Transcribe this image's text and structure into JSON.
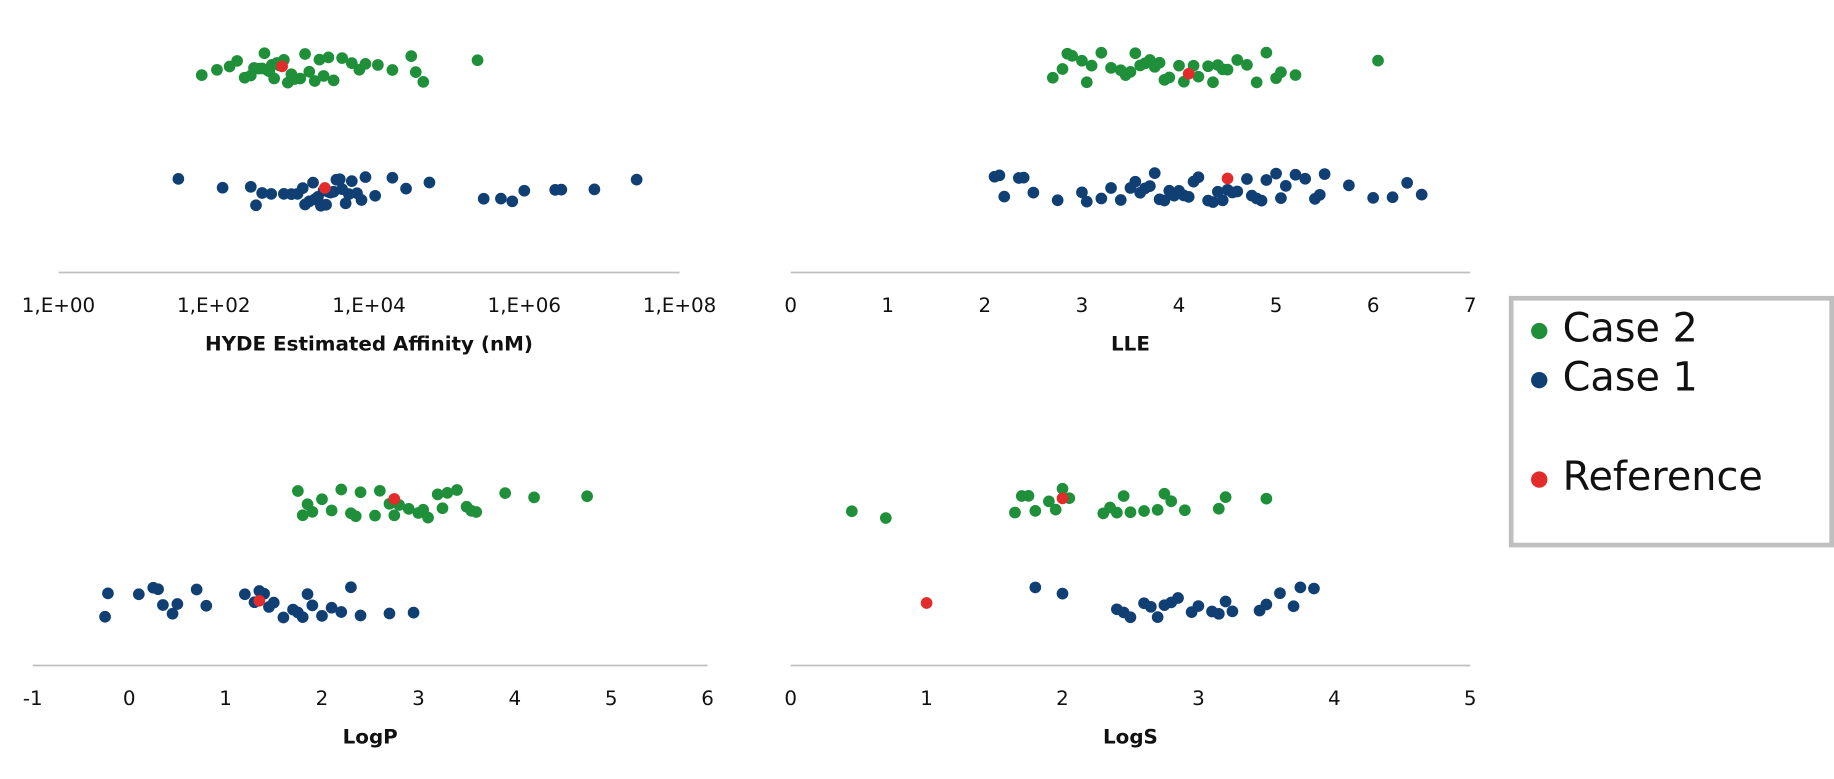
{
  "chart_data": [
    {
      "type": "scatter",
      "xlabel": "HYDE Estimated Affinity (nM)",
      "log": true,
      "xlim": [
        1,
        100000000
      ],
      "xticks": [
        {
          "value": 1,
          "label": "1,E+00"
        },
        {
          "value": 100,
          "label": "1,E+02"
        },
        {
          "value": 10000,
          "label": "1,E+04"
        },
        {
          "value": 1000000,
          "label": "1,E+06"
        },
        {
          "value": 100000000,
          "label": "1,E+08"
        }
      ],
      "series": [
        {
          "name": "Case 2",
          "color": "#1f8f3a",
          "values": [
            70,
            110,
            160,
            200,
            250,
            300,
            330,
            380,
            420,
            450,
            500,
            520,
            560,
            600,
            650,
            700,
            800,
            900,
            1000,
            1100,
            1300,
            1500,
            1700,
            2000,
            2300,
            2600,
            3000,
            3500,
            4500,
            6000,
            7500,
            9000,
            13000,
            20000,
            35000,
            40000,
            50000,
            250000
          ]
        },
        {
          "name": "Case 1",
          "color": "#103f74",
          "values": [
            35,
            130,
            300,
            350,
            420,
            550,
            800,
            1000,
            1200,
            1400,
            1500,
            1700,
            1900,
            2000,
            2200,
            2400,
            2600,
            2800,
            3000,
            3200,
            3500,
            3800,
            4200,
            4500,
            5000,
            5500,
            6000,
            7000,
            8000,
            9000,
            12000,
            20000,
            30000,
            60000,
            300000,
            500000,
            700000,
            1000000,
            2500000,
            3000000,
            8000000,
            28000000
          ]
        },
        {
          "name": "Reference",
          "color": "#e32b2b",
          "values": [
            760,
            2700
          ]
        }
      ]
    },
    {
      "type": "scatter",
      "xlabel": "LLE",
      "log": false,
      "xlim": [
        0,
        7
      ],
      "xticks": [
        0,
        1,
        2,
        3,
        4,
        5,
        6,
        7
      ],
      "series": [
        {
          "name": "Case 2",
          "color": "#1f8f3a",
          "values": [
            2.7,
            2.8,
            2.85,
            2.9,
            3.0,
            3.05,
            3.1,
            3.2,
            3.3,
            3.4,
            3.45,
            3.5,
            3.55,
            3.6,
            3.65,
            3.7,
            3.75,
            3.8,
            3.85,
            3.9,
            4.0,
            4.05,
            4.15,
            4.2,
            4.3,
            4.35,
            4.4,
            4.45,
            4.5,
            4.6,
            4.7,
            4.8,
            4.9,
            5.0,
            5.05,
            5.2,
            6.05
          ]
        },
        {
          "name": "Case 1",
          "color": "#103f74",
          "values": [
            2.1,
            2.15,
            2.2,
            2.35,
            2.4,
            2.5,
            2.75,
            3.0,
            3.05,
            3.2,
            3.3,
            3.4,
            3.5,
            3.55,
            3.6,
            3.65,
            3.7,
            3.75,
            3.8,
            3.85,
            3.9,
            3.95,
            4.0,
            4.05,
            4.1,
            4.15,
            4.2,
            4.3,
            4.35,
            4.4,
            4.45,
            4.5,
            4.55,
            4.6,
            4.7,
            4.75,
            4.8,
            4.85,
            4.9,
            5.0,
            5.05,
            5.1,
            5.2,
            5.3,
            5.4,
            5.45,
            5.5,
            5.75,
            6.0,
            6.2,
            6.35,
            6.5
          ]
        },
        {
          "name": "Reference",
          "color": "#e32b2b",
          "values": [
            4.1,
            4.5
          ]
        }
      ]
    },
    {
      "type": "scatter",
      "xlabel": "LogP",
      "log": false,
      "xlim": [
        -1,
        6
      ],
      "xticks": [
        -1,
        0,
        1,
        2,
        3,
        4,
        5,
        6
      ],
      "series": [
        {
          "name": "Case 2",
          "color": "#1f8f3a",
          "values": [
            1.75,
            1.8,
            1.85,
            1.9,
            2.0,
            2.1,
            2.2,
            2.3,
            2.35,
            2.4,
            2.55,
            2.6,
            2.7,
            2.75,
            2.8,
            2.9,
            3.0,
            3.05,
            3.1,
            3.2,
            3.25,
            3.3,
            3.4,
            3.5,
            3.55,
            3.6,
            3.9,
            4.2,
            4.75
          ]
        },
        {
          "name": "Case 1",
          "color": "#103f74",
          "values": [
            -0.25,
            -0.22,
            0.1,
            0.25,
            0.3,
            0.35,
            0.45,
            0.5,
            0.7,
            0.8,
            1.2,
            1.3,
            1.35,
            1.4,
            1.45,
            1.5,
            1.6,
            1.7,
            1.75,
            1.8,
            1.85,
            1.9,
            2.0,
            2.1,
            2.2,
            2.3,
            2.4,
            2.7,
            2.95
          ]
        },
        {
          "name": "Reference",
          "color": "#e32b2b",
          "values": [
            2.75,
            1.35
          ]
        }
      ]
    },
    {
      "type": "scatter",
      "xlabel": "LogS",
      "log": false,
      "xlim": [
        0,
        5
      ],
      "xticks": [
        0,
        1,
        2,
        3,
        4,
        5
      ],
      "series": [
        {
          "name": "Case 2",
          "color": "#1f8f3a",
          "values": [
            0.45,
            0.7,
            1.65,
            1.7,
            1.75,
            1.8,
            1.9,
            1.95,
            2.0,
            2.05,
            2.3,
            2.35,
            2.4,
            2.45,
            2.5,
            2.6,
            2.7,
            2.75,
            2.8,
            2.9,
            3.15,
            3.2,
            3.5
          ]
        },
        {
          "name": "Case 1",
          "color": "#103f74",
          "values": [
            1.8,
            2.0,
            2.4,
            2.45,
            2.5,
            2.6,
            2.65,
            2.7,
            2.75,
            2.8,
            2.85,
            2.95,
            3.0,
            3.1,
            3.15,
            3.2,
            3.25,
            3.45,
            3.5,
            3.6,
            3.7,
            3.75,
            3.85
          ]
        },
        {
          "name": "Reference",
          "color": "#e32b2b",
          "values": [
            2.0,
            1.0
          ]
        }
      ]
    }
  ]
}
